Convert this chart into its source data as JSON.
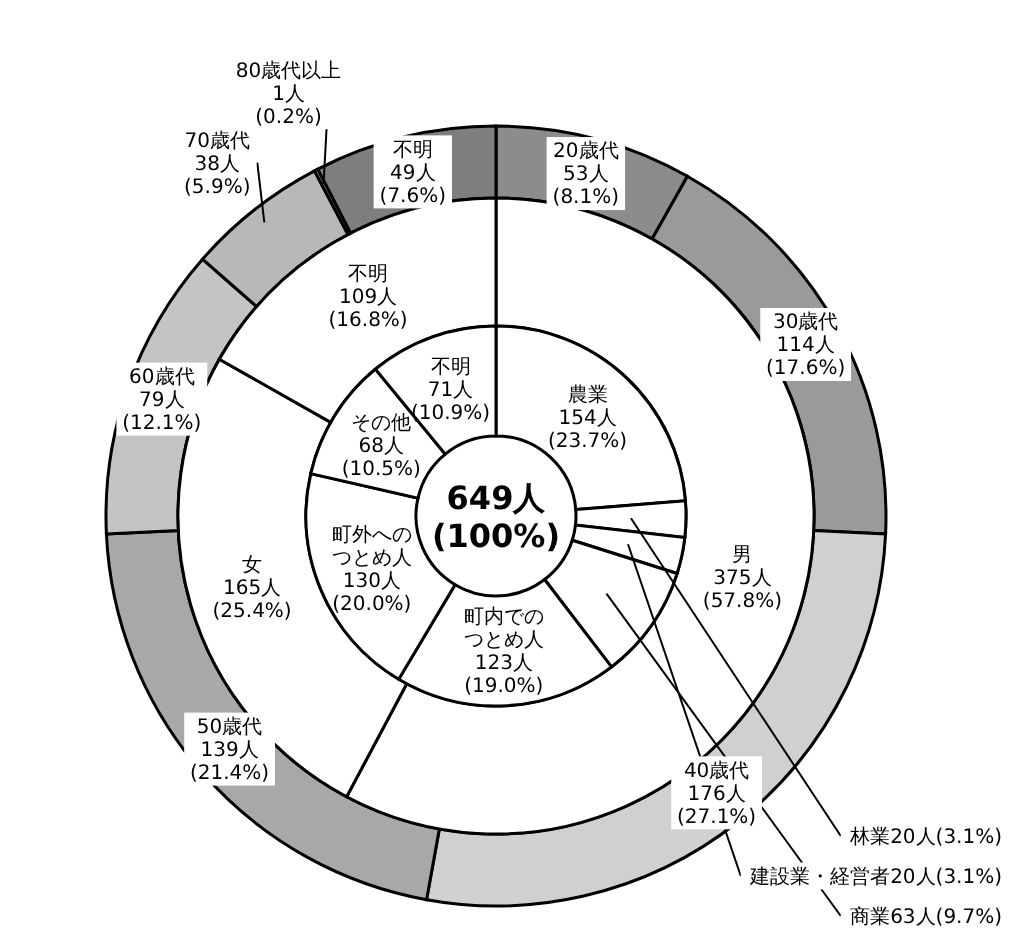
{
  "chart_data": [
    {
      "type": "donut",
      "categories": [
        "農業",
        "林業",
        "建設業・経営者",
        "商業",
        "町内でのつとめ人",
        "町外へのつとめ人",
        "その他",
        "不明"
      ],
      "values": [
        154,
        20,
        20,
        63,
        123,
        130,
        68,
        71
      ],
      "value_labels": [
        "154人(23.7%)",
        "20人(3.1%)",
        "20人(3.1%)",
        "63人(9.7%)",
        "123人(19.0%)",
        "130人(20.0%)",
        "68人(10.5%)",
        "71人(10.9%)"
      ],
      "colors": [
        "#ffffff",
        "#ffffff",
        "#ffffff",
        "#ffffff",
        "#ffffff",
        "#ffffff",
        "#ffffff",
        "#ffffff"
      ],
      "annotations": [
        "649人",
        "(100%)"
      ]
    },
    {
      "type": "donut",
      "categories": [
        "男",
        "女",
        "不明"
      ],
      "values": [
        375,
        165,
        109
      ],
      "value_labels": [
        "375人(57.8%)",
        "165人(25.4%)",
        "109人(16.8%)"
      ],
      "colors": [
        "#ffffff",
        "#ffffff",
        "#ffffff"
      ]
    },
    {
      "type": "donut",
      "categories": [
        "20歳代",
        "30歳代",
        "40歳代",
        "50歳代",
        "60歳代",
        "70歳代",
        "80歳代以上",
        "不明"
      ],
      "values": [
        53,
        114,
        176,
        139,
        79,
        38,
        1,
        49
      ],
      "value_labels": [
        "53人(8.1%)",
        "114人(17.6%)",
        "176人(27.1%)",
        "139人(21.4%)",
        "79人(12.1%)",
        "38人(5.9%)",
        "1人(0.2%)",
        "49人(7.6%)"
      ],
      "colors": [
        "#8c8c8c",
        "#9a9a9a",
        "#d0d0d0",
        "#a8a8a8",
        "#c4c4c4",
        "#b8b8b8",
        "#b0b0b0",
        "#7e7e7e"
      ]
    }
  ]
}
